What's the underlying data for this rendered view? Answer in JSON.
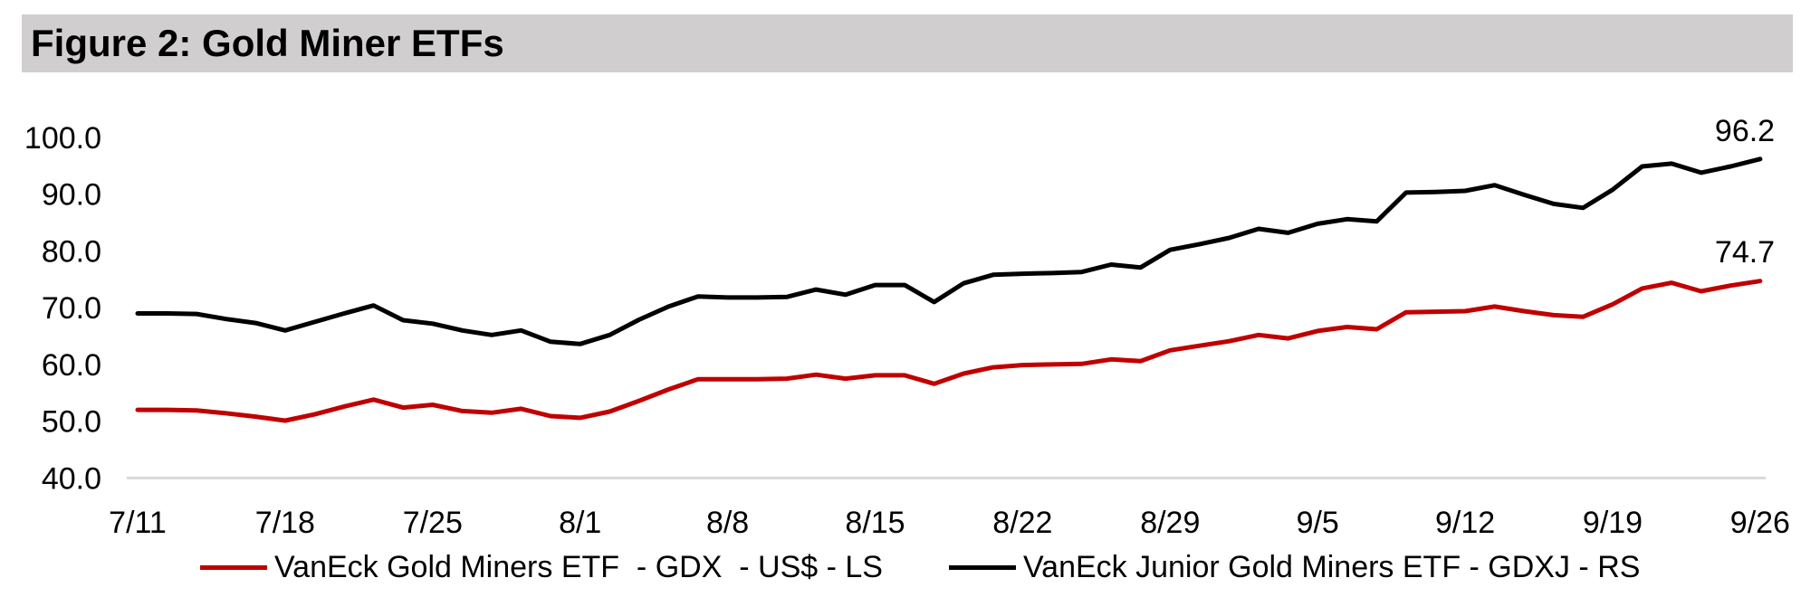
{
  "header": {
    "title": "Figure 2: Gold Miner ETFs"
  },
  "colors": {
    "title_bar_bg": "#d0cece",
    "axis_line": "#d9d9d9",
    "gdx_red": "#c00000",
    "gdxj_black": "#000000",
    "background": "#ffffff",
    "text": "#000000"
  },
  "chart_data": {
    "type": "line",
    "title": "Figure 2: Gold Miner ETFs",
    "x_tick_labels": [
      "7/11",
      "7/18",
      "7/25",
      "8/1",
      "8/8",
      "8/15",
      "8/22",
      "8/29",
      "9/5",
      "9/12",
      "9/19",
      "9/26"
    ],
    "y_ticks": [
      100,
      90,
      80,
      70,
      60,
      50,
      40
    ],
    "y_tick_labels": [
      "100.0",
      "90.0",
      "80.0",
      "70.0",
      "60.0",
      "50.0",
      "40.0"
    ],
    "ylim": [
      40,
      100
    ],
    "grid": false,
    "axis_line_color": "#d9d9d9",
    "legend_position": "bottom",
    "x": [
      "7/11",
      "7/14",
      "7/15",
      "7/16",
      "7/17",
      "7/18",
      "7/21",
      "7/22",
      "7/23",
      "7/24",
      "7/25",
      "7/28",
      "7/29",
      "7/30",
      "7/31",
      "8/1",
      "8/4",
      "8/5",
      "8/6",
      "8/7",
      "8/8",
      "8/11",
      "8/12",
      "8/13",
      "8/14",
      "8/15",
      "8/18",
      "8/19",
      "8/20",
      "8/21",
      "8/22",
      "8/25",
      "8/26",
      "8/27",
      "8/28",
      "8/29",
      "9/1",
      "9/2",
      "9/3",
      "9/4",
      "9/5",
      "9/8",
      "9/9",
      "9/10",
      "9/11",
      "9/12",
      "9/15",
      "9/16",
      "9/17",
      "9/18",
      "9/19",
      "9/22",
      "9/23",
      "9/24",
      "9/25",
      "9/26"
    ],
    "series": [
      {
        "name": "VanEck Gold Miners ETF  - GDX  - US$ - LS",
        "color": "#c00000",
        "side": "LS",
        "end_label": "74.7",
        "values": [
          52.0,
          52.0,
          51.9,
          51.4,
          50.8,
          50.1,
          51.2,
          52.6,
          53.8,
          52.4,
          52.9,
          51.8,
          51.5,
          52.2,
          50.9,
          50.6,
          51.7,
          53.6,
          55.6,
          57.4,
          57.4,
          57.4,
          57.5,
          58.2,
          57.5,
          58.1,
          58.1,
          56.6,
          58.4,
          59.5,
          59.9,
          60.0,
          60.1,
          60.9,
          60.6,
          62.5,
          63.3,
          64.1,
          65.2,
          64.6,
          65.9,
          66.6,
          66.2,
          69.2,
          69.3,
          69.4,
          70.2,
          69.4,
          68.7,
          68.4,
          70.6,
          73.4,
          74.4,
          72.9,
          73.9,
          74.7
        ]
      },
      {
        "name": "VanEck Junior Gold Miners ETF - GDXJ - RS",
        "color": "#000000",
        "side": "RS",
        "end_label": "96.2",
        "values": [
          69.0,
          69.0,
          68.9,
          68.0,
          67.3,
          66.0,
          67.5,
          69.0,
          70.4,
          67.8,
          67.2,
          66.0,
          65.2,
          66.0,
          64.0,
          63.6,
          65.2,
          67.9,
          70.2,
          72.0,
          71.8,
          71.8,
          71.9,
          73.2,
          72.3,
          74.0,
          74.0,
          71.0,
          74.3,
          75.8,
          76.0,
          76.1,
          76.3,
          77.6,
          77.1,
          80.2,
          81.2,
          82.3,
          83.9,
          83.2,
          84.8,
          85.6,
          85.2,
          90.3,
          90.4,
          90.6,
          91.6,
          89.9,
          88.3,
          87.6,
          90.8,
          94.9,
          95.4,
          93.8,
          94.9,
          96.2
        ]
      }
    ]
  }
}
